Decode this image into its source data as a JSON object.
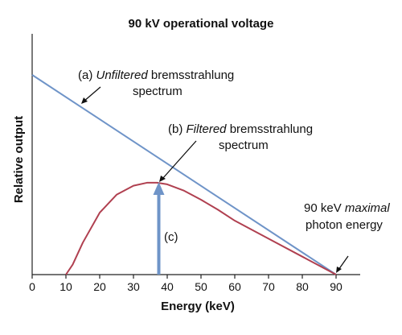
{
  "chart_data": {
    "type": "line",
    "title": "90 kV operational voltage",
    "xlabel": "Energy (keV)",
    "ylabel": "Relative output",
    "xlim": [
      0,
      90
    ],
    "ylim": [
      0,
      100
    ],
    "x_ticks": [
      "0",
      "10",
      "20",
      "30",
      "40",
      "50",
      "60",
      "70",
      "80",
      "90"
    ],
    "grid": false,
    "series": [
      {
        "x": [
          0,
          90
        ],
        "y": [
          100,
          0
        ],
        "color": "#6f94c8"
      },
      {
        "x": [
          10,
          12,
          15,
          20,
          25,
          30,
          34,
          37,
          40,
          45,
          50,
          55,
          60,
          70,
          80,
          90
        ],
        "y": [
          0,
          5,
          16,
          31,
          40,
          44.5,
          46,
          46,
          45.2,
          42,
          37.5,
          32.5,
          27,
          18,
          9,
          0
        ],
        "color": "#b04050"
      }
    ],
    "arrow_c": {
      "x": 37.5,
      "label": "(c)",
      "color": "#6f94c8"
    },
    "annotations": {
      "a": {
        "prefix": "(a) ",
        "emph": "Unfiltered",
        "rest": " bremsstrahlung",
        "line2": "spectrum"
      },
      "b": {
        "prefix": "(b) ",
        "emph": "Filtered",
        "rest": " bremsstrahlung",
        "line2": "spectrum"
      },
      "max": {
        "line1_prefix": "90 keV ",
        "line1_emph": "maximal",
        "line2": "photon energy"
      }
    }
  }
}
